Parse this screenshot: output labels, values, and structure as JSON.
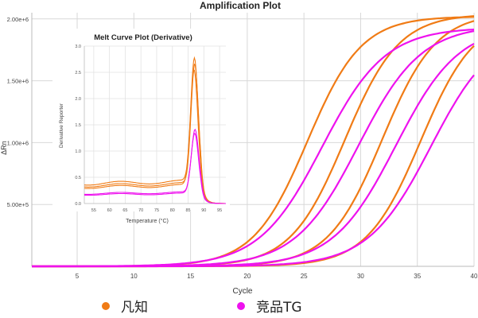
{
  "chart_data": [
    {
      "type": "line",
      "title": "Amplification Plot",
      "xlabel": "Cycle",
      "ylabel": "ΔRn",
      "xlim": [
        1,
        40
      ],
      "ylim": [
        0,
        2050000
      ],
      "x_ticks": [
        "5",
        "10",
        "15",
        "20",
        "25",
        "30",
        "35",
        "40"
      ],
      "y_ticks": [
        "5.00e+5",
        "1.00e+6",
        "1.50e+6",
        "2.00e+6"
      ],
      "grid": true,
      "colors": {
        "orange": "#f07b15",
        "magenta": "#ee12ee"
      },
      "legend": [
        {
          "label": "凡知",
          "color": "#f07b15"
        },
        {
          "label": "竞品TG",
          "color": "#ee12ee"
        }
      ],
      "series": [
        {
          "group": "凡知",
          "color": "#f07b15",
          "ct": 25.3,
          "plateau": 2020000,
          "slope": 0.42
        },
        {
          "group": "凡知",
          "color": "#f07b15",
          "ct": 28.6,
          "plateau": 2040000,
          "slope": 0.42
        },
        {
          "group": "凡知",
          "color": "#f07b15",
          "ct": 31.9,
          "plateau": 2050000,
          "slope": 0.42
        },
        {
          "group": "凡知",
          "color": "#f07b15",
          "ct": 35.3,
          "plateau": 2030000,
          "slope": 0.42
        },
        {
          "group": "竞品TG",
          "color": "#ee12ee",
          "ct": 26.6,
          "plateau": 1930000,
          "slope": 0.36
        },
        {
          "group": "竞品TG",
          "color": "#ee12ee",
          "ct": 29.8,
          "plateau": 1950000,
          "slope": 0.36
        },
        {
          "group": "竞品TG",
          "color": "#ee12ee",
          "ct": 33.1,
          "plateau": 1950000,
          "slope": 0.36
        },
        {
          "group": "竞品TG",
          "color": "#ee12ee",
          "ct": 36.2,
          "plateau": 1940000,
          "slope": 0.36
        }
      ]
    },
    {
      "type": "line",
      "title": "Melt Curve Plot (Derivative)",
      "xlabel": "Temperature (°C)",
      "ylabel": "Derivative Reporter",
      "xlim": [
        52,
        97
      ],
      "ylim": [
        0,
        3.0
      ],
      "x_ticks": [
        "55",
        "60",
        "65",
        "70",
        "75",
        "80",
        "85",
        "90",
        "95"
      ],
      "y_ticks": [
        "0.0",
        "0.5",
        "1.0",
        "1.5",
        "2.0",
        "2.5",
        "3.0"
      ],
      "grid": true,
      "series": [
        {
          "group": "凡知",
          "color": "#f07b15",
          "base": 0.38,
          "peak_temp": 87.0,
          "peak": 2.35
        },
        {
          "group": "凡知",
          "color": "#f07b15",
          "base": 0.34,
          "peak_temp": 87.1,
          "peak": 2.28
        },
        {
          "group": "凡知",
          "color": "#f07b15",
          "base": 0.31,
          "peak_temp": 86.9,
          "peak": 2.2
        },
        {
          "group": "竞品TG",
          "color": "#ee12ee",
          "base": 0.19,
          "peak_temp": 87.2,
          "peak": 1.2
        },
        {
          "group": "竞品TG",
          "color": "#ee12ee",
          "base": 0.17,
          "peak_temp": 87.1,
          "peak": 1.15
        }
      ]
    }
  ]
}
